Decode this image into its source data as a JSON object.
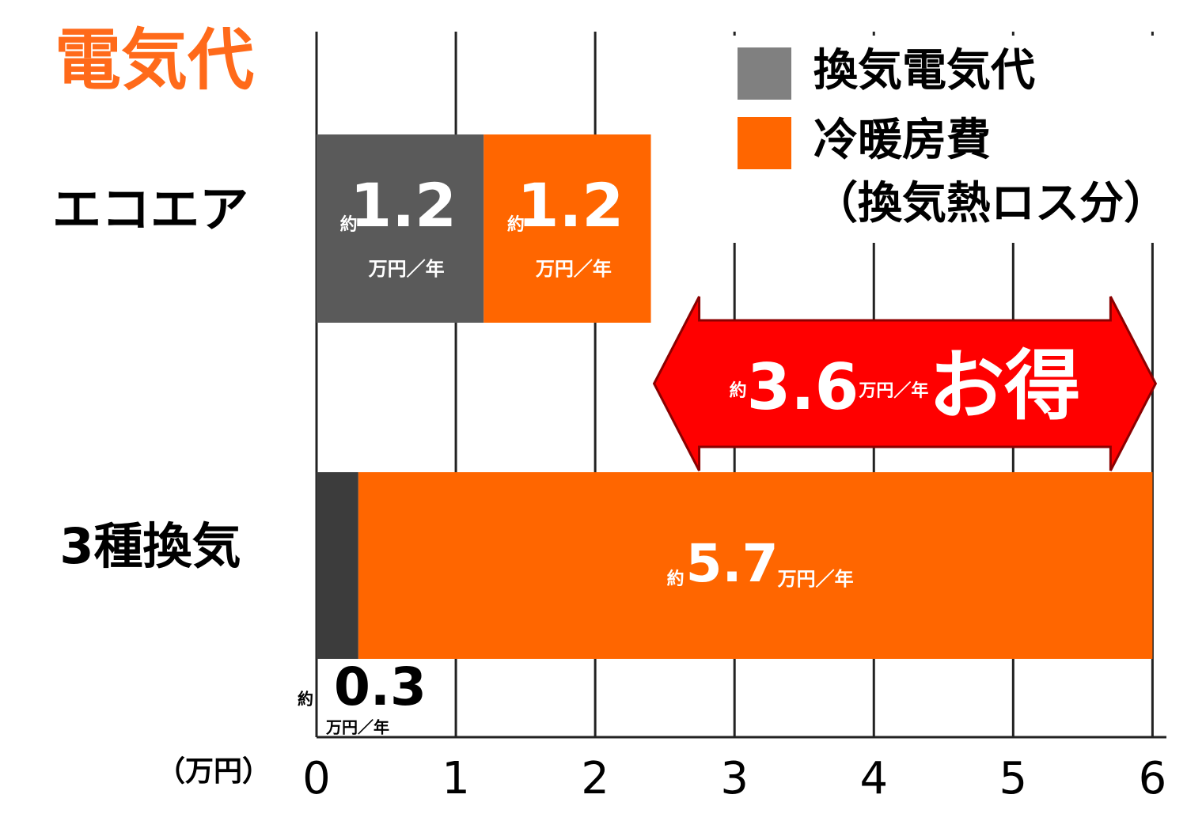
{
  "chart_data": {
    "type": "stacked_bar_horizontal",
    "title": "電気代",
    "categories": [
      "エコエア",
      "3種換気"
    ],
    "series": [
      {
        "name": "換気電気代",
        "color": "#808080",
        "colors": [
          "#5a5a5a",
          "#3c3c3c"
        ],
        "values": [
          1.2,
          0.3
        ]
      },
      {
        "name": "冷暖房費（換気熱ロス分）",
        "color": "#ff6600",
        "values": [
          1.2,
          5.7
        ]
      }
    ],
    "value_prefix": "約",
    "value_unit": "万円／年",
    "x_label": "（万円）",
    "xlim": [
      0,
      6.1
    ],
    "xticks": [
      0,
      1,
      2,
      3,
      4,
      5,
      6
    ],
    "grid": true,
    "annotation": {
      "prefix": "約",
      "value": 3.6,
      "unit": "万円／年",
      "suffix": "お得",
      "color": "#ff0000"
    },
    "legend": "upper right"
  }
}
